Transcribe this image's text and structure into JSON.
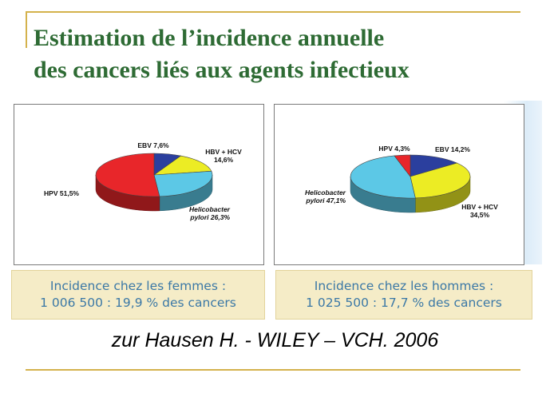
{
  "title": {
    "line1": "Estimation de l’incidence annuelle",
    "line2": "des cancers liés aux agents infectieux"
  },
  "chart_data": [
    {
      "type": "pie",
      "categories": [
        "EBV",
        "HBV + HCV",
        "Helicobacter pylori",
        "HPV"
      ],
      "values": [
        7.6,
        14.6,
        26.3,
        51.5
      ],
      "colors": [
        "#2b3f9e",
        "#ecec24",
        "#5cc8e6",
        "#e8262a"
      ],
      "labels": [
        {
          "lines": [
            "EBV 7,6%"
          ]
        },
        {
          "lines": [
            "HBV + HCV",
            "14,6%"
          ]
        },
        {
          "lines": [
            "Helicobacter",
            "pylori 26,3%"
          ]
        },
        {
          "lines": [
            "HPV 51,5%"
          ]
        }
      ]
    },
    {
      "type": "pie",
      "categories": [
        "EBV",
        "HBV + HCV",
        "Helicobacter pylori",
        "HPV"
      ],
      "values": [
        14.2,
        34.5,
        47.1,
        4.3
      ],
      "colors": [
        "#2b3f9e",
        "#ecec24",
        "#5cc8e6",
        "#e8262a"
      ],
      "labels": [
        {
          "lines": [
            "EBV 14,2%"
          ]
        },
        {
          "lines": [
            "HBV + HCV",
            "34,5%"
          ]
        },
        {
          "lines": [
            "Helicobacter",
            "pylori 47,1%"
          ]
        },
        {
          "lines": [
            "HPV 4,3%"
          ]
        }
      ]
    }
  ],
  "incidence": {
    "women": {
      "line1": "Incidence chez les femmes :",
      "line2": "1 006 500 : 19,9 % des cancers"
    },
    "men": {
      "line1": "Incidence chez les hommes :",
      "line2": "1 025 500 : 17,7 % des cancers"
    }
  },
  "citation": "zur Hausen H. - WILEY – VCH. 2006"
}
